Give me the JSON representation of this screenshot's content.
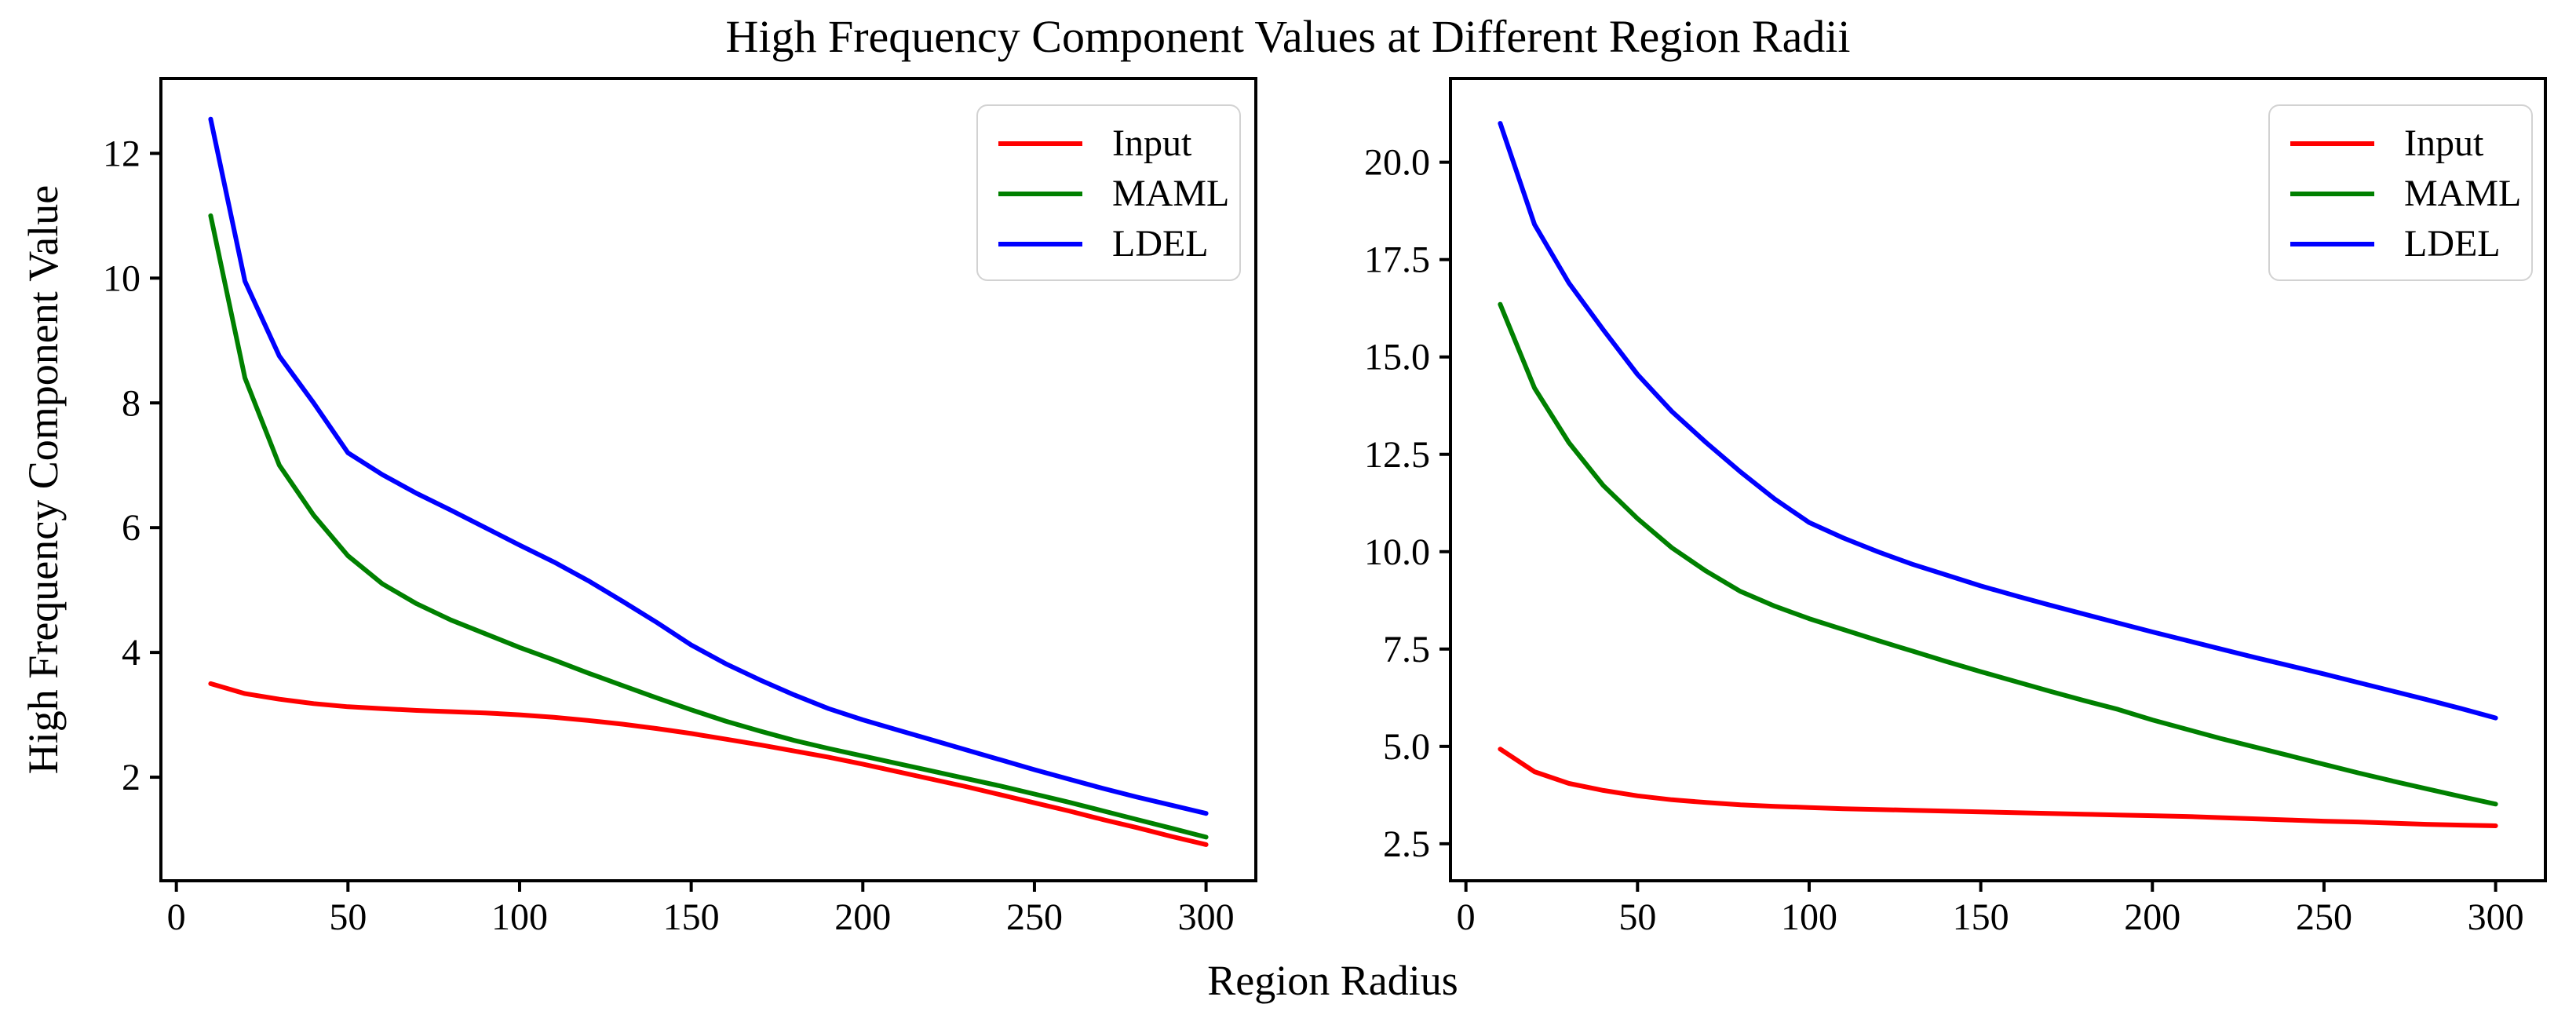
{
  "figure": {
    "title": "High Frequency Component Values at Different Region Radii",
    "xlabel": "Region Radius",
    "ylabel": "High Frequency Component Value"
  },
  "colors": {
    "input": "#ff0000",
    "maml": "#008000",
    "ldel": "#0000ff",
    "axis": "#000000",
    "background": "#ffffff",
    "legend_border": "#d2d2d2"
  },
  "legend": {
    "items": [
      {
        "label": "Input",
        "color": "#ff0000"
      },
      {
        "label": "MAML",
        "color": "#008000"
      },
      {
        "label": "LDEL",
        "color": "#0000ff"
      }
    ]
  },
  "chart_data": [
    {
      "type": "line",
      "panel": "left",
      "title": "High Frequency Component Values at Different Region Radii",
      "xlabel": "Region Radius",
      "ylabel": "High Frequency Component Value",
      "grid": false,
      "legend_position": "upper right",
      "xlim": [
        -4.5,
        314.5
      ],
      "ylim": [
        0.34,
        13.2
      ],
      "xticks": {
        "values": [
          0,
          50,
          100,
          150,
          200,
          250,
          300
        ],
        "labels": [
          "0",
          "50",
          "100",
          "150",
          "200",
          "250",
          "300"
        ]
      },
      "yticks": {
        "values": [
          2,
          4,
          6,
          8,
          10,
          12
        ],
        "labels": [
          "2",
          "4",
          "6",
          "8",
          "10",
          "12"
        ]
      },
      "x": [
        10,
        20,
        30,
        40,
        50,
        60,
        70,
        80,
        90,
        100,
        110,
        120,
        130,
        140,
        150,
        160,
        170,
        180,
        190,
        200,
        210,
        220,
        230,
        240,
        250,
        260,
        270,
        280,
        290,
        300
      ],
      "series": [
        {
          "name": "Input",
          "color": "#ff0000",
          "values": [
            3.5,
            3.34,
            3.25,
            3.18,
            3.13,
            3.1,
            3.07,
            3.05,
            3.03,
            3.0,
            2.96,
            2.91,
            2.85,
            2.78,
            2.7,
            2.61,
            2.52,
            2.42,
            2.32,
            2.21,
            2.09,
            1.97,
            1.85,
            1.72,
            1.59,
            1.46,
            1.32,
            1.19,
            1.05,
            0.92
          ]
        },
        {
          "name": "MAML",
          "color": "#008000",
          "values": [
            11.0,
            8.4,
            7.0,
            6.2,
            5.55,
            5.1,
            4.78,
            4.52,
            4.3,
            4.08,
            3.88,
            3.67,
            3.47,
            3.27,
            3.08,
            2.9,
            2.74,
            2.59,
            2.46,
            2.34,
            2.22,
            2.1,
            1.98,
            1.86,
            1.73,
            1.6,
            1.46,
            1.32,
            1.18,
            1.04
          ]
        },
        {
          "name": "LDEL",
          "color": "#0000ff",
          "values": [
            12.55,
            9.95,
            8.75,
            8.0,
            7.2,
            6.85,
            6.55,
            6.28,
            6.0,
            5.72,
            5.45,
            5.15,
            4.82,
            4.48,
            4.12,
            3.82,
            3.56,
            3.32,
            3.1,
            2.92,
            2.76,
            2.6,
            2.44,
            2.28,
            2.12,
            1.97,
            1.82,
            1.68,
            1.55,
            1.42
          ]
        }
      ]
    },
    {
      "type": "line",
      "panel": "right",
      "title": "",
      "xlabel": "Region Radius",
      "ylabel": "",
      "grid": false,
      "legend_position": "upper right",
      "xlim": [
        -4.5,
        314.5
      ],
      "ylim": [
        1.55,
        22.15
      ],
      "xticks": {
        "values": [
          0,
          50,
          100,
          150,
          200,
          250,
          300
        ],
        "labels": [
          "0",
          "50",
          "100",
          "150",
          "200",
          "250",
          "300"
        ]
      },
      "yticks": {
        "values": [
          2.5,
          5.0,
          7.5,
          10.0,
          12.5,
          15.0,
          17.5,
          20.0
        ],
        "labels": [
          "2.5",
          "5.0",
          "7.5",
          "10.0",
          "12.5",
          "15.0",
          "17.5",
          "20.0"
        ]
      },
      "x": [
        10,
        20,
        30,
        40,
        50,
        60,
        70,
        80,
        90,
        100,
        110,
        120,
        130,
        140,
        150,
        160,
        170,
        180,
        190,
        200,
        210,
        220,
        230,
        240,
        250,
        260,
        270,
        280,
        290,
        300
      ],
      "series": [
        {
          "name": "Input",
          "color": "#ff0000",
          "values": [
            4.93,
            4.35,
            4.05,
            3.87,
            3.73,
            3.63,
            3.56,
            3.5,
            3.46,
            3.43,
            3.4,
            3.38,
            3.36,
            3.34,
            3.32,
            3.3,
            3.28,
            3.26,
            3.24,
            3.22,
            3.2,
            3.17,
            3.14,
            3.11,
            3.08,
            3.06,
            3.03,
            3.0,
            2.98,
            2.96
          ]
        },
        {
          "name": "MAML",
          "color": "#008000",
          "values": [
            16.35,
            14.2,
            12.8,
            11.7,
            10.85,
            10.1,
            9.5,
            8.98,
            8.6,
            8.28,
            8.0,
            7.72,
            7.45,
            7.18,
            6.92,
            6.67,
            6.42,
            6.18,
            5.95,
            5.68,
            5.44,
            5.2,
            4.98,
            4.76,
            4.54,
            4.32,
            4.11,
            3.91,
            3.71,
            3.52
          ]
        },
        {
          "name": "LDEL",
          "color": "#0000ff",
          "values": [
            21.0,
            18.4,
            16.9,
            15.7,
            14.55,
            13.6,
            12.8,
            12.05,
            11.35,
            10.75,
            10.35,
            10.0,
            9.68,
            9.4,
            9.12,
            8.87,
            8.63,
            8.4,
            8.17,
            7.94,
            7.72,
            7.5,
            7.28,
            7.07,
            6.86,
            6.64,
            6.42,
            6.2,
            5.97,
            5.73
          ]
        }
      ]
    }
  ]
}
